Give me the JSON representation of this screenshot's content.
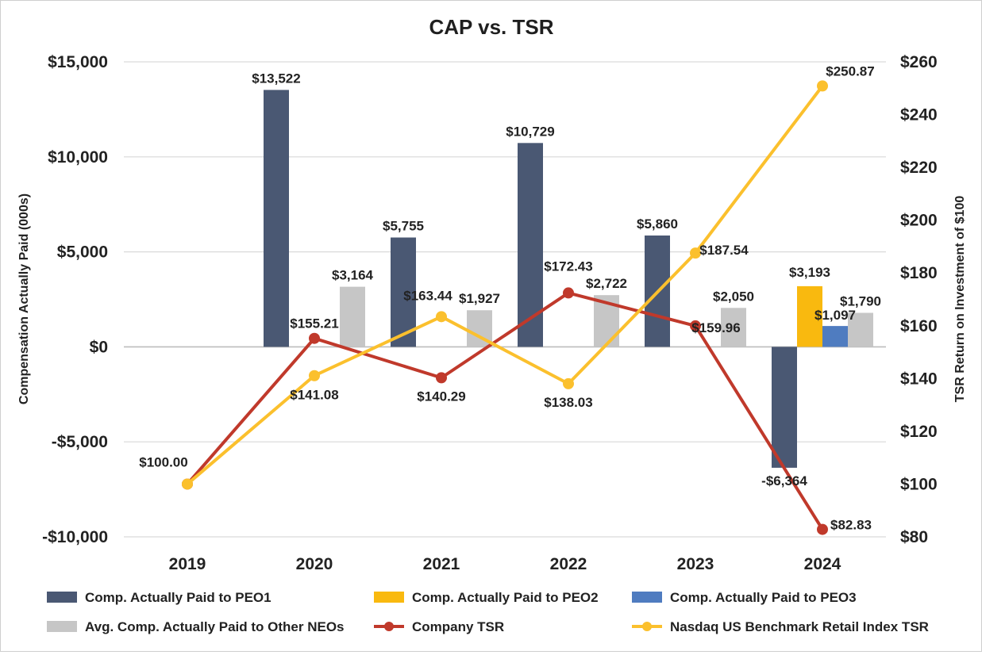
{
  "chart_data": {
    "type": "bar+line",
    "title": "CAP vs. TSR",
    "categories": [
      "2019",
      "2020",
      "2021",
      "2022",
      "2023",
      "2024"
    ],
    "y_left": {
      "label": "Compensation Actually Paid (000s)",
      "range": [
        -10000,
        15000
      ],
      "ticks": [
        15000,
        10000,
        5000,
        0,
        -5000,
        -10000
      ],
      "tick_labels": [
        "$15,000",
        "$10,000",
        "$5,000",
        "$0",
        "-$5,000",
        "-$10,000"
      ]
    },
    "y_right": {
      "label": "TSR Return on Investment of $100",
      "range": [
        80,
        260
      ],
      "ticks": [
        260,
        240,
        220,
        200,
        180,
        160,
        140,
        120,
        100,
        80
      ],
      "tick_labels": [
        "$260",
        "$240",
        "$220",
        "$200",
        "$180",
        "$160",
        "$140",
        "$120",
        "$100",
        "$80"
      ]
    },
    "bar_series": [
      {
        "name": "Comp. Actually Paid to PEO1",
        "color": "#4a5873",
        "values": [
          null,
          13522,
          5755,
          10729,
          5860,
          -6364
        ],
        "labels": [
          null,
          "$13,522",
          "$5,755",
          "$10,729",
          "$5,860",
          "-$6,364"
        ]
      },
      {
        "name": "Comp. Actually Paid to PEO2",
        "color": "#f9b90f",
        "values": [
          null,
          null,
          null,
          null,
          null,
          3193
        ],
        "labels": [
          null,
          null,
          null,
          null,
          null,
          "$3,193"
        ]
      },
      {
        "name": "Comp. Actually Paid to PEO3",
        "color": "#4f7cc0",
        "values": [
          null,
          null,
          null,
          null,
          null,
          1097
        ],
        "labels": [
          null,
          null,
          null,
          null,
          null,
          "$1,097"
        ]
      },
      {
        "name": "Avg. Comp. Actually Paid to Other NEOs",
        "color": "#c6c6c6",
        "values": [
          null,
          3164,
          1927,
          2722,
          2050,
          1790
        ],
        "labels": [
          null,
          "$3,164",
          "$1,927",
          "$2,722",
          "$2,050",
          "$1,790"
        ]
      }
    ],
    "line_series": [
      {
        "name": "Company TSR",
        "color": "#c0392b",
        "values": [
          100.0,
          155.21,
          140.29,
          172.43,
          159.96,
          82.83
        ],
        "labels": [
          "$100.00",
          "$155.21",
          "$140.29",
          "$172.43",
          "$159.96",
          "$82.83"
        ]
      },
      {
        "name": "Nasdaq US Benchmark Retail Index TSR",
        "color": "#fbc02d",
        "values": [
          100.0,
          141.08,
          163.44,
          138.03,
          187.54,
          250.87
        ],
        "labels": [
          "$100.00",
          "$141.08",
          "$163.44",
          "$138.03",
          "$187.54",
          "$250.87"
        ]
      }
    ],
    "legend_position": "bottom"
  }
}
